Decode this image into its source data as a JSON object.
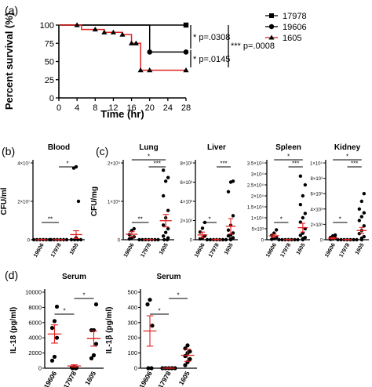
{
  "panel_labels": {
    "a": "(a)",
    "b": "(b)",
    "c": "(c)",
    "d": "(d)"
  },
  "survival": {
    "ylabel": "Percent survival (%)",
    "xlabel": "Time (hr)",
    "xticks": [
      "0",
      "4",
      "8",
      "12",
      "16",
      "20",
      "24",
      "28"
    ],
    "yticks": [
      "0",
      "25",
      "50",
      "75",
      "100"
    ],
    "legend": [
      {
        "name": "17978",
        "color": "#000000",
        "marker": "square"
      },
      {
        "name": "19606",
        "color": "#000000",
        "marker": "circle"
      },
      {
        "name": "1605",
        "color": "#e02020",
        "marker": "triangle"
      }
    ],
    "stats": {
      "upper": "* p=.0308",
      "lower": "* p=.0145",
      "overall": "*** p=.0008"
    }
  },
  "chart_data": [
    {
      "type": "line",
      "xlabel": "Time (hr)",
      "ylabel": "Percent survival (%)",
      "xlim": [
        0,
        28
      ],
      "ylim": [
        0,
        100
      ],
      "series": [
        {
          "name": "17978",
          "x": [
            0,
            20,
            28
          ],
          "y": [
            100,
            100,
            100
          ]
        },
        {
          "name": "19606",
          "x": [
            0,
            20,
            20,
            28
          ],
          "y": [
            100,
            100,
            63,
            63
          ]
        },
        {
          "name": "1605",
          "x": [
            0,
            4,
            5,
            8,
            10,
            12,
            14,
            16,
            17,
            18,
            20,
            28
          ],
          "y": [
            100,
            100,
            94,
            94,
            90,
            90,
            87,
            75,
            75,
            38,
            38,
            38
          ]
        }
      ]
    },
    {
      "type": "scatter",
      "title": "Blood",
      "ylabel": "CFU/ml",
      "categories": [
        "19606",
        "17978",
        "1605"
      ],
      "yticks": [
        "0",
        "2×10⁷",
        "4×10⁷"
      ],
      "ymax": 60000000,
      "points": [
        [
          0,
          0,
          0,
          0,
          0,
          0
        ],
        [
          0,
          0,
          0,
          0,
          0,
          0
        ],
        [
          0,
          0,
          0,
          0,
          1500000,
          30000000,
          56000000,
          57000000
        ]
      ],
      "means": [
        0,
        0,
        4000000
      ],
      "sems": [
        200000,
        100000,
        3000000
      ],
      "sig": [
        {
          "from": 0,
          "to": 1,
          "label": "**"
        },
        {
          "from": 1,
          "to": 2,
          "label": "*"
        }
      ]
    },
    {
      "type": "scatter",
      "title": "Lung",
      "ylabel": "CFU/mg",
      "categories": [
        "19606",
        "17978",
        "1605"
      ],
      "yticks": [
        "0",
        "1×10⁵",
        "2×10⁵"
      ],
      "ymax": 210000,
      "points": [
        [
          2000,
          5000,
          8000,
          14000,
          25000,
          30000
        ],
        [
          0,
          0,
          0,
          0,
          0,
          0,
          0
        ],
        [
          0,
          0,
          5000,
          10000,
          20000,
          30000,
          40000,
          60000,
          80000,
          120000,
          160000,
          170000,
          190000
        ]
      ],
      "means": [
        15000,
        0,
        52000
      ],
      "sems": [
        7000,
        500,
        17000
      ],
      "sig": [
        {
          "from": 0,
          "to": 1,
          "label": "**"
        },
        {
          "from": 1,
          "to": 2,
          "label": "***"
        },
        {
          "from": 0,
          "to": 2,
          "label": "*"
        }
      ]
    },
    {
      "type": "scatter",
      "title": "Liver",
      "ylabel": "",
      "categories": [
        "19606",
        "17978",
        "1605"
      ],
      "yticks": [
        "0",
        "2×10³",
        "4×10³",
        "6×10³",
        "8×10³"
      ],
      "ymax": 8000,
      "points": [
        [
          100,
          200,
          400,
          800,
          1200,
          1800
        ],
        [
          0,
          0,
          0,
          0,
          0,
          0,
          0
        ],
        [
          0,
          100,
          200,
          400,
          500,
          700,
          1000,
          1500,
          2500,
          5000,
          6000,
          6100
        ]
      ],
      "means": [
        500,
        0,
        1400
      ],
      "sems": [
        300,
        50,
        800
      ],
      "sig": [
        {
          "from": 0,
          "to": 1,
          "label": "*"
        },
        {
          "from": 1,
          "to": 2,
          "label": "***"
        }
      ]
    },
    {
      "type": "scatter",
      "title": "Spleen",
      "ylabel": "",
      "categories": [
        "19606",
        "17978",
        "1605"
      ],
      "yticks": [
        "0",
        "5×10³",
        "1×10⁴",
        "1.5×10⁴",
        "2×10⁴",
        "2.5×10⁴",
        "3×10⁴",
        "3.5×10⁴"
      ],
      "ymax": 35000,
      "points": [
        [
          200,
          500,
          1000,
          2000,
          3000,
          4500
        ],
        [
          0,
          0,
          0,
          0,
          0,
          0,
          0
        ],
        [
          0,
          500,
          1000,
          2000,
          3000,
          5000,
          8000,
          10000,
          12000,
          16000,
          20000,
          25000,
          29000
        ]
      ],
      "means": [
        1800,
        0,
        5500
      ],
      "sems": [
        700,
        100,
        2000
      ],
      "sig": [
        {
          "from": 0,
          "to": 1,
          "label": "*"
        },
        {
          "from": 1,
          "to": 2,
          "label": "***"
        },
        {
          "from": 0,
          "to": 2,
          "label": "*"
        }
      ]
    },
    {
      "type": "scatter",
      "title": "Kidney",
      "ylabel": "",
      "categories": [
        "19606",
        "17978",
        "1605"
      ],
      "yticks": [
        "0",
        "2×10³",
        "4×10³",
        "6×10³",
        "8×10³",
        "1×10⁴"
      ],
      "ymax": 10000,
      "points": [
        [
          50,
          100,
          200,
          300,
          500,
          600
        ],
        [
          0,
          0,
          0,
          0,
          0,
          0,
          0
        ],
        [
          0,
          200,
          400,
          800,
          1200,
          1800,
          2500,
          3000,
          3500,
          4000,
          5000,
          6000
        ]
      ],
      "means": [
        200,
        0,
        1200
      ],
      "sems": [
        100,
        50,
        400
      ],
      "sig": [
        {
          "from": 0,
          "to": 1,
          "label": "*"
        },
        {
          "from": 1,
          "to": 2,
          "label": "***"
        },
        {
          "from": 0,
          "to": 2,
          "label": "*"
        }
      ]
    },
    {
      "type": "scatter",
      "title": "Serum",
      "ylabel": "IL-18 (pg/ml)",
      "categories": [
        "19606",
        "17978",
        "1605"
      ],
      "yticks": [
        "0",
        "2000",
        "4000",
        "6000",
        "8000",
        "10000"
      ],
      "ymax": 10000,
      "points": [
        [
          1000,
          1500,
          4000,
          5300,
          6200,
          8100
        ],
        [
          0,
          0,
          50,
          100,
          200
        ],
        [
          1300,
          1700,
          3200,
          5000,
          5000,
          8400
        ]
      ],
      "means": [
        4500,
        300,
        3900
      ],
      "sems": [
        1200,
        150,
        1000
      ],
      "sig": [
        {
          "from": 0,
          "to": 1,
          "label": "*"
        },
        {
          "from": 1,
          "to": 2,
          "label": "*"
        }
      ]
    },
    {
      "type": "scatter",
      "title": "Serum",
      "ylabel": "IL-1β (pg/ml)",
      "categories": [
        "19606",
        "17978",
        "1605"
      ],
      "yticks": [
        "0",
        "100",
        "200",
        "300",
        "400",
        "500"
      ],
      "ymax": 500,
      "points": [
        [
          0,
          0,
          280,
          420,
          450
        ],
        [
          0,
          0,
          0,
          0,
          0
        ],
        [
          20,
          40,
          60,
          80,
          100,
          110,
          130,
          150
        ]
      ],
      "means": [
        245,
        0,
        85
      ],
      "sems": [
        100,
        2,
        40
      ],
      "sig": [
        {
          "from": 0,
          "to": 1,
          "label": "*"
        },
        {
          "from": 1,
          "to": 2,
          "label": "*"
        }
      ]
    }
  ]
}
